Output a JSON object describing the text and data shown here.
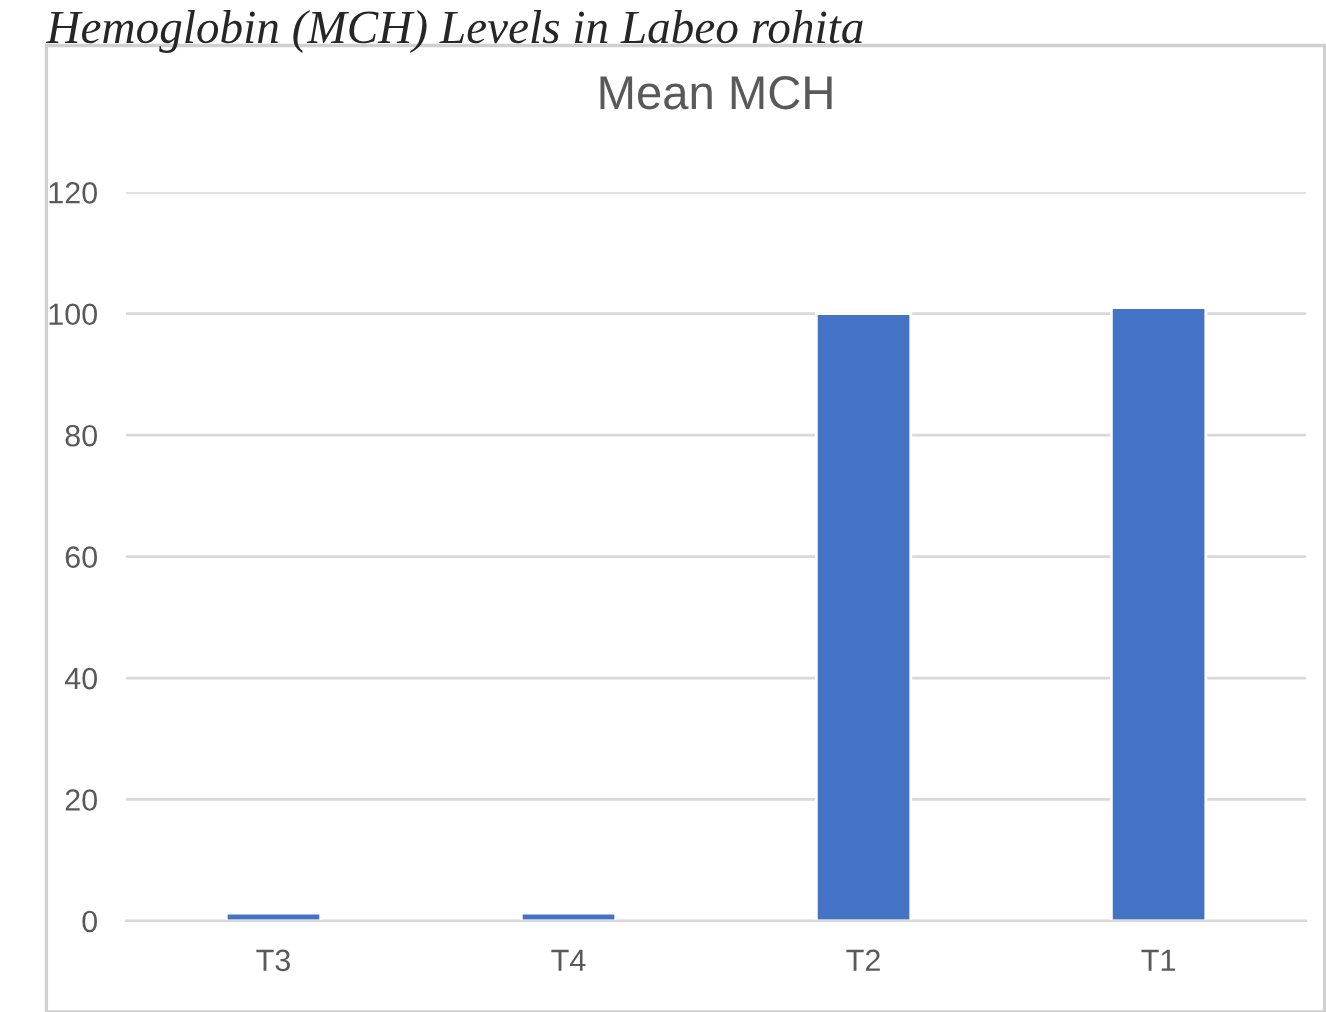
{
  "chart_data": {
    "type": "bar",
    "title": "Mean MCH",
    "annotations": [
      "Hemoglobin (MCH) Levels in Labeo rohita"
    ],
    "categories": [
      "T3",
      "T4",
      "T2",
      "T1"
    ],
    "series": [
      {
        "color": "#4472c4",
        "values": [
          1.3,
          1.3,
          100,
          101
        ]
      }
    ],
    "ylim": [
      0,
      120
    ],
    "yticks": [
      0,
      20,
      40,
      60,
      80,
      100,
      120
    ],
    "grid": "y",
    "legend": false
  }
}
